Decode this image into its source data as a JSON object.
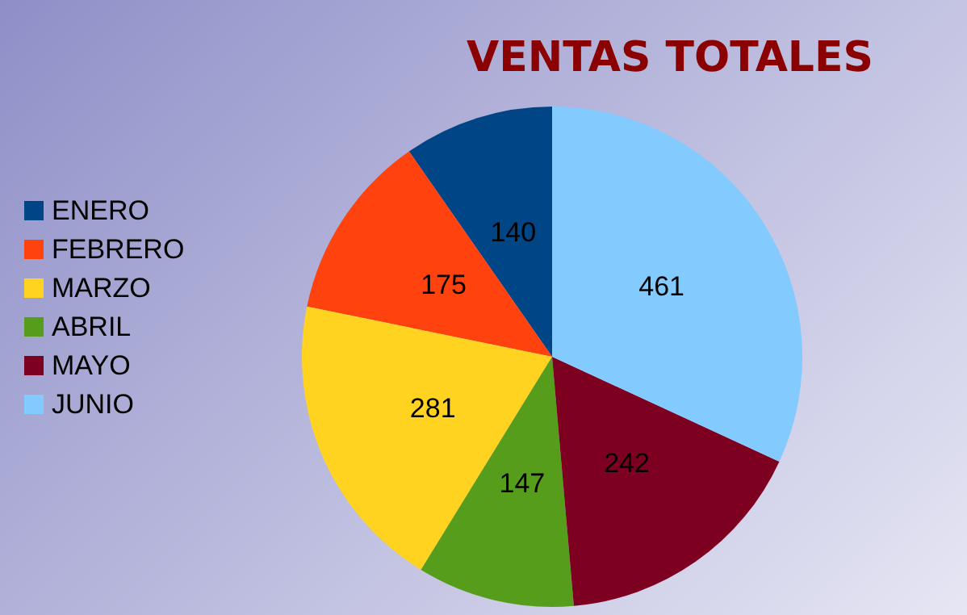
{
  "chart_data": {
    "type": "pie",
    "title": "VENTAS TOTALES",
    "categories": [
      "ENERO",
      "FEBRERO",
      "MARZO",
      "ABRIL",
      "MAYO",
      "JUNIO"
    ],
    "values": [
      140,
      175,
      281,
      147,
      242,
      461
    ],
    "colors": [
      "#004586",
      "#ff420e",
      "#ffd320",
      "#579d1c",
      "#7e0021",
      "#83caff"
    ],
    "data_labels": true,
    "legend": "left"
  }
}
